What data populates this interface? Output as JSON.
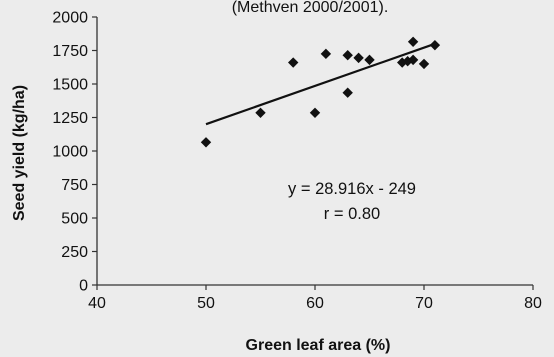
{
  "chart_data": {
    "type": "scatter",
    "caption_fragment": "(Methven 2000/2001).",
    "xlabel": "Green leaf area (%)",
    "ylabel": "Seed yield (kg/ha)",
    "xlim": [
      40,
      80
    ],
    "ylim": [
      0,
      2000
    ],
    "xticks": [
      40,
      50,
      60,
      70,
      80
    ],
    "yticks": [
      0,
      250,
      500,
      750,
      1000,
      1250,
      1500,
      1750,
      2000
    ],
    "grid": false,
    "legend": "none",
    "marker": "diamond",
    "marker_color": "#111111",
    "points": [
      {
        "x": 50,
        "y": 1065
      },
      {
        "x": 55,
        "y": 1285
      },
      {
        "x": 58,
        "y": 1660
      },
      {
        "x": 60,
        "y": 1285
      },
      {
        "x": 61,
        "y": 1725
      },
      {
        "x": 63,
        "y": 1715
      },
      {
        "x": 63,
        "y": 1435
      },
      {
        "x": 64,
        "y": 1695
      },
      {
        "x": 65,
        "y": 1680
      },
      {
        "x": 68,
        "y": 1660
      },
      {
        "x": 68.5,
        "y": 1670
      },
      {
        "x": 69,
        "y": 1815
      },
      {
        "x": 69,
        "y": 1680
      },
      {
        "x": 70,
        "y": 1650
      },
      {
        "x": 71,
        "y": 1790
      }
    ],
    "trendline": {
      "x": [
        50,
        71
      ],
      "y": [
        1200,
        1800
      ]
    },
    "annotations": [
      "y = 28.916x - 249",
      "r = 0.80"
    ]
  }
}
